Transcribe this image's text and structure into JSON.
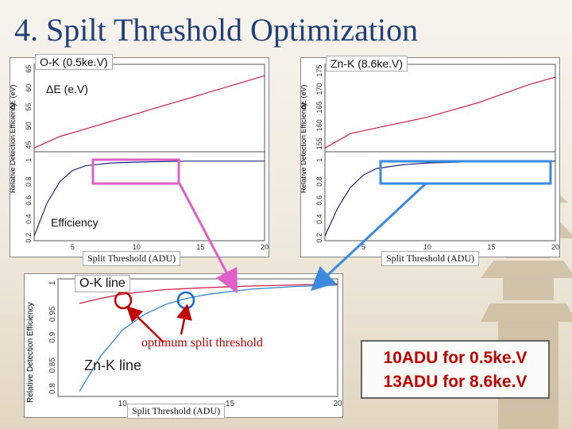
{
  "slide": {
    "title": "4. Spilt Threshold Optimization"
  },
  "panels": {
    "ok_label": "O-K (0.5ke.V)",
    "znk_label": "Zn-K (8.6ke.V)",
    "delta_e_label": "ΔE (e.V)",
    "efficiency_label": "Efficiency",
    "xlabel_left": "Split Threshold (ADU)",
    "xlabel_right": "Split Threshold (ADU)",
    "ylabel_top": "ΔE (eV)",
    "ylabel_bottom": "Relative Detection Efficiency",
    "ok_top_ticks": [
      "45",
      "50",
      "55",
      "60",
      "65"
    ],
    "znk_top_ticks": [
      "155",
      "160",
      "165",
      "170",
      "175"
    ],
    "bottom_ticks": [
      "0.2",
      "0.4",
      "0.6",
      "0.8",
      "1"
    ],
    "x_ticks": [
      "5",
      "10",
      "15",
      "20"
    ]
  },
  "combined": {
    "ok_line_label": "O-K line",
    "znk_line_label": "Zn-K line",
    "xlabel": "Split Threshold (ADU)",
    "ylabel": "Relative Detection Efficiency",
    "y_ticks": [
      "0.8",
      "0.85",
      "0.9",
      "0.95",
      "1"
    ],
    "x_ticks": [
      "10",
      "15",
      "20"
    ]
  },
  "annotation": {
    "optimum": "optimum split threshold"
  },
  "result": {
    "line1": "10ADU for 0.5ke.V",
    "line2": "13ADU for 8.6ke.V"
  },
  "colors": {
    "title": "#1f3f7a",
    "red_curve": "#d0204a",
    "blue_curve": "#1a2a7a",
    "pink_box": "#e060c8",
    "blue_box": "#3a8ae0",
    "highlight_red": "#c00000"
  },
  "chart_data": [
    {
      "type": "line",
      "panel": "O-K top",
      "x": [
        2,
        4,
        6,
        8,
        10,
        12,
        14,
        16,
        18,
        20
      ],
      "y": [
        44,
        47,
        49,
        51,
        53,
        55,
        57,
        59,
        61,
        63
      ],
      "ylim": [
        43,
        66
      ],
      "xlim": [
        2,
        20
      ]
    },
    {
      "type": "line",
      "panel": "O-K bottom",
      "x": [
        2,
        3,
        4,
        5,
        6,
        8,
        10,
        14,
        20
      ],
      "y": [
        0.2,
        0.55,
        0.78,
        0.9,
        0.95,
        0.98,
        0.99,
        1.0,
        1.0
      ],
      "ylim": [
        0.15,
        1.1
      ],
      "xlim": [
        2,
        20
      ]
    },
    {
      "type": "line",
      "panel": "Zn-K top",
      "x": [
        2,
        4,
        6,
        8,
        10,
        12,
        14,
        16,
        18,
        20
      ],
      "y": [
        153,
        157,
        158.5,
        160,
        161.5,
        163.5,
        165.5,
        168,
        170.5,
        172.5
      ],
      "ylim": [
        152,
        176
      ],
      "xlim": [
        2,
        20
      ]
    },
    {
      "type": "line",
      "panel": "Zn-K bottom",
      "x": [
        2,
        3,
        4,
        5,
        6,
        8,
        10,
        14,
        20
      ],
      "y": [
        0.2,
        0.5,
        0.72,
        0.85,
        0.92,
        0.96,
        0.98,
        0.995,
        1.0
      ],
      "ylim": [
        0.15,
        1.1
      ],
      "xlim": [
        2,
        20
      ]
    },
    {
      "type": "line",
      "panel": "combined",
      "series": [
        {
          "x": [
            8,
            9,
            10,
            11,
            12,
            14,
            16,
            18,
            20
          ],
          "y": [
            0.962,
            0.972,
            0.98,
            0.985,
            0.989,
            0.993,
            0.996,
            0.998,
            1.0
          ]
        },
        {
          "x": [
            8,
            9,
            10,
            11,
            12,
            13,
            14,
            16,
            18,
            20
          ],
          "y": [
            0.79,
            0.86,
            0.91,
            0.94,
            0.96,
            0.972,
            0.98,
            0.99,
            0.995,
            0.998
          ]
        }
      ],
      "ylim": [
        0.78,
        1.01
      ],
      "xlim": [
        7,
        20
      ]
    }
  ]
}
